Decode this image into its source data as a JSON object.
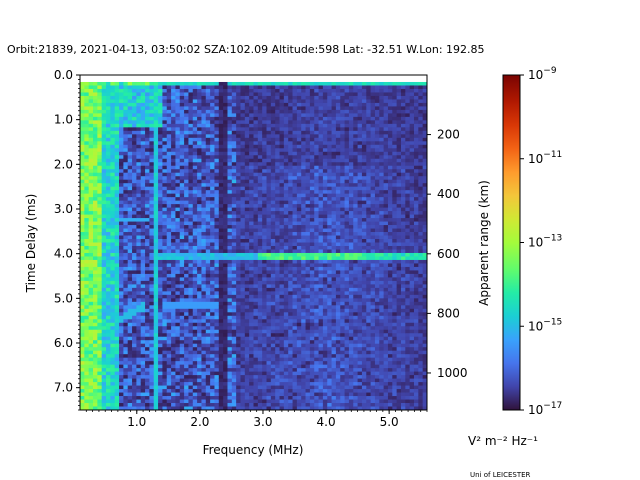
{
  "figure": {
    "title": "Orbit:21839, 2021-04-13, 03:50:02 SZA:102.09 Altitude:598 Lat: -32.51 W.Lon: 192.85",
    "footer": "Uni of LEICESTER"
  },
  "chart_data": {
    "type": "heatmap",
    "xlabel": "Frequency (MHz)",
    "ylabel": "Time Delay (ms)",
    "y2label": "Apparent range (km)",
    "xlim": [
      0.1,
      5.6
    ],
    "ylim": [
      7.5,
      0.0
    ],
    "x_ticks": [
      1.0,
      2.0,
      3.0,
      4.0,
      5.0
    ],
    "x_tick_labels": [
      "1.0",
      "2.0",
      "3.0",
      "4.0",
      "5.0"
    ],
    "y_ticks": [
      0.0,
      1.0,
      2.0,
      3.0,
      4.0,
      5.0,
      6.0,
      7.0
    ],
    "y_tick_labels": [
      "0.0",
      "1.0",
      "2.0",
      "3.0",
      "4.0",
      "5.0",
      "6.0",
      "7.0"
    ],
    "y2_ticks_ms": [
      1.334,
      2.668,
      4.003,
      5.337,
      6.671
    ],
    "y2_tick_labels": [
      "200",
      "400",
      "600",
      "800",
      "1000"
    ],
    "colorbar": {
      "scale": "log",
      "range": [
        1e-17,
        1e-09
      ],
      "ticks": [
        -17,
        -15,
        -13,
        -11,
        -9
      ],
      "tick_labels": [
        "10",
        "10",
        "10",
        "10",
        "10"
      ],
      "tick_exponents": [
        "−17",
        "−15",
        "−13",
        "−11",
        "−9"
      ],
      "units_label": "V² m⁻² Hz⁻¹",
      "colormap": "turbo"
    },
    "features": [
      {
        "description": "strong noise/surface echo at low frequencies",
        "freq_mhz": [
          0.1,
          0.6
        ],
        "delay_ms": [
          0.1,
          7.5
        ],
        "log_intensity": -13.3
      },
      {
        "description": "horizontal echo trace",
        "freq_mhz": [
          3.0,
          5.6
        ],
        "delay_ms": [
          4.05
        ],
        "log_intensity": -13.8
      },
      {
        "description": "vertical interference line",
        "freq_mhz": [
          1.3
        ],
        "delay_ms": [
          0.1,
          7.5
        ],
        "log_intensity": -14.8
      },
      {
        "description": "vertical interference line",
        "freq_mhz": [
          2.38
        ],
        "delay_ms": [
          0.1,
          7.5
        ],
        "log_intensity": -16.2
      },
      {
        "description": "top row transmit pulse",
        "freq_mhz": [
          0.1,
          5.6
        ],
        "delay_ms": [
          0.15
        ],
        "log_intensity": -14.5
      }
    ],
    "grid": false
  }
}
